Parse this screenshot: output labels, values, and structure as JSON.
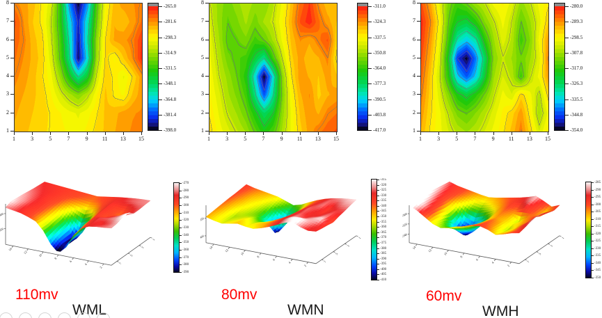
{
  "page": {
    "background": "#ffffff"
  },
  "captions": [
    {
      "voltage": "110mv",
      "name": "WML"
    },
    {
      "voltage": "80mv",
      "name": "WMN"
    },
    {
      "voltage": "60mv",
      "name": "WMH"
    }
  ],
  "colors": {
    "voltage": "#ff0000",
    "name": "#1a1a1a",
    "contour_line": "#6e6e6e"
  },
  "decoration": {
    "cutoff_circles": 6
  },
  "chart_data": [
    {
      "type": "heatmap",
      "panel": "WML contour map",
      "x_ticks": [
        1,
        3,
        5,
        7,
        9,
        11,
        13,
        15
      ],
      "y_ticks": [
        8,
        7,
        6,
        5,
        4,
        3,
        2,
        1
      ],
      "zmin": -398,
      "zmax": -265,
      "colorbar_ticks": [
        "-265.0",
        "-281.6",
        "-298.3",
        "-314.9",
        "-331.5",
        "-348.1",
        "-364.8",
        "-381.4",
        "-398.0"
      ],
      "grid": [
        [
          -280,
          -284,
          -288,
          -296,
          -306,
          -332,
          -372,
          -396,
          -372,
          -328,
          -300,
          -288,
          -284,
          -282,
          -279
        ],
        [
          -272,
          -282,
          -290,
          -296,
          -310,
          -332,
          -362,
          -386,
          -360,
          -324,
          -297,
          -286,
          -289,
          -284,
          -277
        ],
        [
          -275,
          -280,
          -288,
          -293,
          -308,
          -328,
          -356,
          -390,
          -356,
          -318,
          -294,
          -285,
          -283,
          -279,
          -269
        ],
        [
          -277,
          -282,
          -287,
          -292,
          -305,
          -326,
          -352,
          -393,
          -362,
          -316,
          -293,
          -299,
          -290,
          -281,
          -267
        ],
        [
          -280,
          -284,
          -288,
          -294,
          -301,
          -316,
          -336,
          -354,
          -340,
          -308,
          -291,
          -296,
          -303,
          -294,
          -283
        ],
        [
          -283,
          -286,
          -289,
          -292,
          -298,
          -306,
          -313,
          -319,
          -311,
          -299,
          -289,
          -296,
          -299,
          -289,
          -283
        ],
        [
          -285,
          -288,
          -290,
          -292,
          -295,
          -298,
          -301,
          -303,
          -300,
          -295,
          -289,
          -287,
          -284,
          -282,
          -281
        ],
        [
          -287,
          -289,
          -291,
          -293,
          -295,
          -297,
          -299,
          -301,
          -297,
          -293,
          -289,
          -286,
          -283,
          -281,
          -280
        ]
      ]
    },
    {
      "type": "heatmap",
      "panel": "WMN contour map",
      "x_ticks": [
        1,
        3,
        5,
        7,
        9,
        11,
        13,
        15
      ],
      "y_ticks": [
        8,
        7,
        6,
        5,
        4,
        3,
        2,
        1
      ],
      "zmin": -417,
      "zmax": -311,
      "colorbar_ticks": [
        "-311.0",
        "-324.3",
        "-337.5",
        "-350.8",
        "-364.0",
        "-377.3",
        "-390.5",
        "-403.8",
        "-417.0"
      ],
      "grid": [
        [
          -346,
          -352,
          -356,
          -352,
          -348,
          -352,
          -354,
          -348,
          -340,
          -330,
          -320,
          -314,
          -324,
          -330,
          -328
        ],
        [
          -344,
          -352,
          -358,
          -355,
          -350,
          -356,
          -350,
          -346,
          -338,
          -328,
          -317,
          -312,
          -320,
          -326,
          -331
        ],
        [
          -342,
          -350,
          -360,
          -358,
          -355,
          -362,
          -358,
          -350,
          -340,
          -330,
          -324,
          -327,
          -322,
          -317,
          -333
        ],
        [
          -340,
          -348,
          -356,
          -360,
          -362,
          -372,
          -382,
          -362,
          -346,
          -332,
          -326,
          -330,
          -328,
          -323,
          -336
        ],
        [
          -338,
          -346,
          -352,
          -358,
          -366,
          -388,
          -416,
          -388,
          -354,
          -335,
          -325,
          -328,
          -331,
          -326,
          -330
        ],
        [
          -337,
          -343,
          -350,
          -355,
          -362,
          -380,
          -402,
          -382,
          -356,
          -338,
          -328,
          -324,
          -332,
          -328,
          -326
        ],
        [
          -335,
          -341,
          -347,
          -351,
          -357,
          -367,
          -377,
          -370,
          -353,
          -340,
          -330,
          -325,
          -328,
          -323,
          -321
        ],
        [
          -333,
          -339,
          -343,
          -347,
          -351,
          -359,
          -367,
          -361,
          -350,
          -340,
          -332,
          -326,
          -322,
          -319,
          -317
        ]
      ]
    },
    {
      "type": "heatmap",
      "panel": "WMH contour map",
      "x_ticks": [
        1,
        3,
        5,
        7,
        9,
        11,
        13,
        15
      ],
      "y_ticks": [
        8,
        7,
        6,
        5,
        4,
        3,
        2,
        1
      ],
      "zmin": -354,
      "zmax": -280,
      "colorbar_ticks": [
        "-280.0",
        "-289.3",
        "-298.5",
        "-307.8",
        "-317.0",
        "-326.3",
        "-335.5",
        "-344.8",
        "-354.0"
      ],
      "grid": [
        [
          -284,
          -291,
          -301,
          -311,
          -316,
          -313,
          -308,
          -305,
          -300,
          -298,
          -302,
          -309,
          -305,
          -300,
          -297
        ],
        [
          -281,
          -288,
          -298,
          -313,
          -321,
          -323,
          -318,
          -310,
          -305,
          -300,
          -305,
          -313,
          -308,
          -302,
          -294
        ],
        [
          -282,
          -290,
          -300,
          -316,
          -331,
          -336,
          -331,
          -318,
          -308,
          -302,
          -306,
          -316,
          -310,
          -300,
          -290
        ],
        [
          -284,
          -292,
          -302,
          -321,
          -346,
          -353,
          -341,
          -326,
          -310,
          -305,
          -308,
          -312,
          -308,
          -302,
          -288
        ],
        [
          -286,
          -294,
          -304,
          -318,
          -336,
          -343,
          -336,
          -322,
          -308,
          -303,
          -306,
          -316,
          -305,
          -300,
          -290
        ],
        [
          -288,
          -295,
          -302,
          -310,
          -319,
          -323,
          -318,
          -312,
          -305,
          -300,
          -303,
          -295,
          -300,
          -306,
          -295
        ],
        [
          -290,
          -296,
          -300,
          -305,
          -311,
          -313,
          -310,
          -306,
          -302,
          -298,
          -295,
          -290,
          -298,
          -308,
          -300
        ],
        [
          -292,
          -297,
          -300,
          -303,
          -306,
          -308,
          -306,
          -303,
          -300,
          -297,
          -293,
          -288,
          -295,
          -303,
          -297
        ]
      ]
    },
    {
      "type": "surface3d",
      "panel": "WML 3D surface",
      "grid_source": 0,
      "zmin": -390,
      "zmax": -270,
      "colorbar_ticks": [
        "-270",
        "-280",
        "-290",
        "-300",
        "-310",
        "-320",
        "-330",
        "-340",
        "-350",
        "-360",
        "-370",
        "-380",
        "-390"
      ],
      "x_ticks": [
        "14",
        "12",
        "10",
        "8",
        "6",
        "4",
        "2"
      ],
      "y_ticks": [
        "1",
        "3",
        "5",
        "7"
      ],
      "z_ticks": [
        "-300",
        "-350"
      ]
    },
    {
      "type": "surface3d",
      "panel": "WMN 3D surface",
      "grid_source": 1,
      "zmin": -410,
      "zmax": -315,
      "colorbar_ticks": [
        "-315",
        "-320",
        "-325",
        "-330",
        "-335",
        "-340",
        "-345",
        "-350",
        "-355",
        "-360",
        "-365",
        "-370",
        "-375",
        "-380",
        "-385",
        "-390",
        "-395",
        "-400",
        "-405",
        "-410"
      ],
      "x_ticks": [
        "14",
        "12",
        "10",
        "8",
        "6",
        "4",
        "2"
      ],
      "y_ticks": [
        "1",
        "3",
        "5",
        "7"
      ],
      "z_ticks": [
        "-350",
        "-400"
      ]
    },
    {
      "type": "surface3d",
      "panel": "WMH 3D surface",
      "grid_source": 2,
      "zmin": -350,
      "zmax": -285,
      "colorbar_ticks": [
        "-285",
        "-290",
        "-295",
        "-300",
        "-305",
        "-310",
        "-315",
        "-320",
        "-325",
        "-330",
        "-335",
        "-340",
        "-345",
        "-350"
      ],
      "x_ticks": [
        "14",
        "12",
        "10",
        "8",
        "6",
        "4",
        "2"
      ],
      "y_ticks": [
        "1",
        "3",
        "5",
        "7"
      ],
      "z_ticks": [
        "-300",
        "-320",
        "-340"
      ]
    }
  ]
}
